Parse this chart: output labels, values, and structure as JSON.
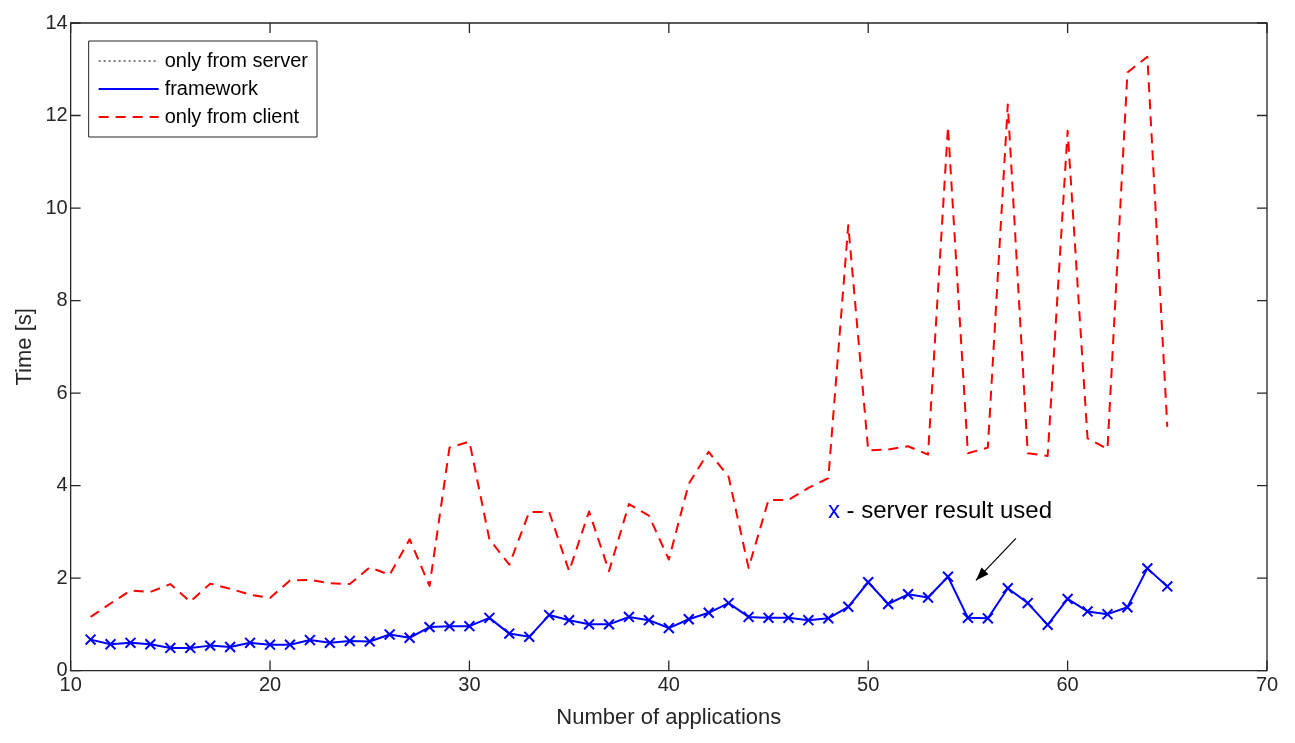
{
  "chart_data": {
    "type": "line",
    "xlabel": "Number of applications",
    "ylabel": "Time [s]",
    "x": [
      11,
      12,
      13,
      14,
      15,
      16,
      17,
      18,
      19,
      20,
      21,
      22,
      23,
      24,
      25,
      26,
      27,
      28,
      29,
      30,
      31,
      32,
      33,
      34,
      35,
      36,
      37,
      38,
      39,
      40,
      41,
      42,
      43,
      44,
      45,
      46,
      47,
      48,
      49,
      50,
      51,
      52,
      53,
      54,
      55,
      56,
      57,
      58,
      59,
      60,
      61,
      62,
      63,
      64,
      65
    ],
    "series": [
      {
        "name": "only from server",
        "color": "#000000",
        "line_style": "dotted",
        "marker": "none",
        "values": [
          null,
          null,
          null,
          null,
          null,
          null,
          null,
          null,
          null,
          null,
          null,
          null,
          null,
          null,
          null,
          null,
          null,
          null,
          null,
          null,
          null,
          null,
          null,
          null,
          null,
          null,
          null,
          null,
          null,
          null,
          null,
          null,
          null,
          null,
          null,
          null,
          null,
          null,
          null,
          null,
          null,
          null,
          null,
          null,
          null,
          null,
          null,
          null,
          null,
          null,
          null,
          null,
          null,
          null,
          null
        ]
      },
      {
        "name": "framework",
        "color": "#0000ff",
        "line_style": "solid",
        "marker": "cross",
        "values": [
          0.67,
          0.57,
          0.6,
          0.57,
          0.49,
          0.49,
          0.54,
          0.51,
          0.6,
          0.56,
          0.56,
          0.66,
          0.6,
          0.64,
          0.63,
          0.78,
          0.71,
          0.94,
          0.96,
          0.96,
          1.14,
          0.8,
          0.73,
          1.2,
          1.09,
          1.0,
          1.0,
          1.16,
          1.09,
          0.92,
          1.11,
          1.25,
          1.46,
          1.16,
          1.14,
          1.14,
          1.09,
          1.13,
          1.38,
          1.91,
          1.44,
          1.65,
          1.58,
          2.03,
          1.14,
          1.13,
          1.78,
          1.46,
          0.99,
          1.55,
          1.28,
          1.22,
          1.37,
          2.21,
          1.82
        ]
      },
      {
        "name": "only from client",
        "color": "#ff0000",
        "line_style": "dashed",
        "marker": "none",
        "values": [
          1.16,
          1.45,
          1.73,
          1.7,
          1.87,
          1.49,
          1.88,
          1.77,
          1.64,
          1.57,
          1.95,
          1.96,
          1.89,
          1.87,
          2.23,
          2.07,
          2.84,
          1.83,
          4.82,
          4.95,
          2.84,
          2.29,
          3.43,
          3.43,
          2.15,
          3.44,
          2.15,
          3.6,
          3.35,
          2.4,
          4.04,
          4.73,
          4.19,
          2.22,
          3.69,
          3.69,
          3.95,
          4.16,
          9.63,
          4.76,
          4.78,
          4.85,
          4.67,
          11.76,
          4.7,
          4.82,
          12.24,
          4.7,
          4.64,
          11.67,
          5.02,
          4.79,
          12.93,
          13.27,
          5.27
        ]
      }
    ],
    "xlim": [
      10,
      70
    ],
    "xticks": [
      10,
      20,
      30,
      40,
      50,
      60,
      70
    ],
    "ylim": [
      0,
      14
    ],
    "yticks": [
      0,
      2,
      4,
      6,
      8,
      10,
      12,
      14
    ],
    "grid": false,
    "legend": "top left",
    "annotations": [
      "x - server result used"
    ]
  }
}
